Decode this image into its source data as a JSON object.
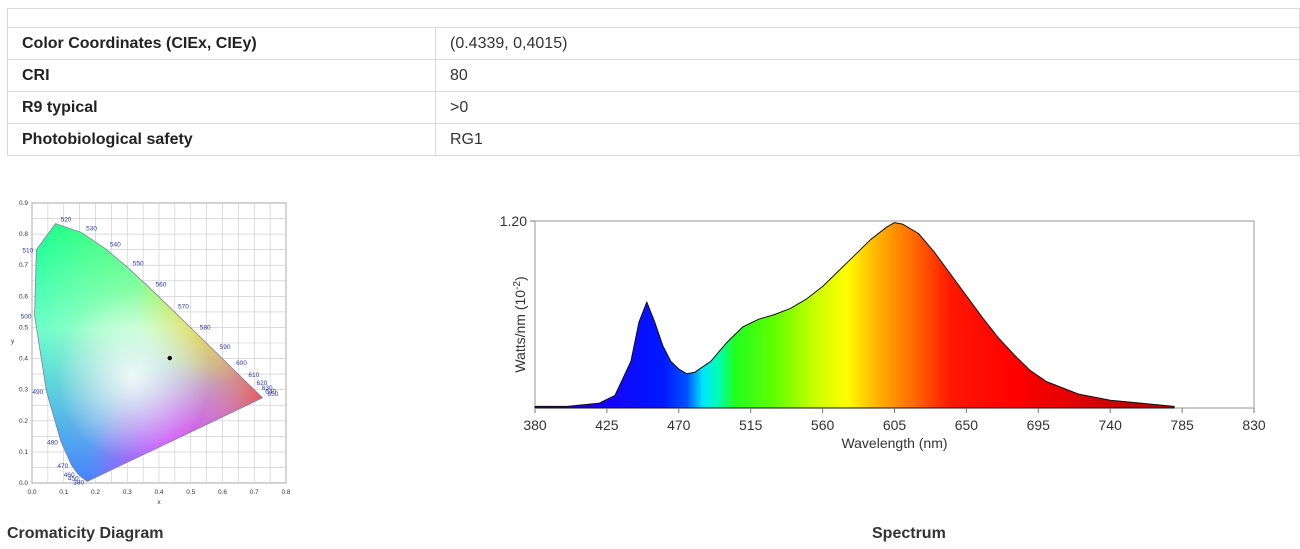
{
  "table": {
    "rows": [
      {
        "label": "Color Coordinates (CIEx, CIEy)",
        "value": "(0.4339, 0,4015)"
      },
      {
        "label": "CRI",
        "value": "80"
      },
      {
        "label": "R9 typical",
        "value": ">0"
      },
      {
        "label": "Photobiological safety",
        "value": "RG1"
      }
    ]
  },
  "captions": {
    "cie": "Cromaticity Diagram",
    "spectrum": "Spectrum"
  },
  "chart_data": [
    {
      "type": "scatter",
      "title": "",
      "xlabel": "x",
      "ylabel": "y",
      "xlim": [
        0,
        0.8
      ],
      "ylim": [
        0,
        0.9
      ],
      "x_ticks": [
        "0.0",
        "0.1",
        "0.2",
        "0.3",
        "0.4",
        "0.5",
        "0.6",
        "0.7",
        "0.8"
      ],
      "y_ticks": [
        "0.0",
        "0.1",
        "0.2",
        "0.3",
        "0.4",
        "0.5",
        "0.6",
        "0.7",
        "0.8",
        "0.9"
      ],
      "grid": true,
      "point": {
        "x": 0.4339,
        "y": 0.4015
      },
      "wavelength_labels": [
        {
          "label": "520",
          "x": 0.0743,
          "y": 0.8338
        },
        {
          "label": "530",
          "x": 0.1547,
          "y": 0.8059
        },
        {
          "label": "540",
          "x": 0.2296,
          "y": 0.7543
        },
        {
          "label": "550",
          "x": 0.3016,
          "y": 0.6923
        },
        {
          "label": "560",
          "x": 0.3731,
          "y": 0.6245
        },
        {
          "label": "570",
          "x": 0.4441,
          "y": 0.5547
        },
        {
          "label": "580",
          "x": 0.5125,
          "y": 0.4866
        },
        {
          "label": "590",
          "x": 0.5752,
          "y": 0.4242
        },
        {
          "label": "600",
          "x": 0.627,
          "y": 0.3725
        },
        {
          "label": "610",
          "x": 0.6658,
          "y": 0.334
        },
        {
          "label": "620",
          "x": 0.6915,
          "y": 0.3083
        },
        {
          "label": "630",
          "x": 0.7079,
          "y": 0.292
        },
        {
          "label": "640",
          "x": 0.719,
          "y": 0.2809
        },
        {
          "label": "650",
          "x": 0.726,
          "y": 0.274
        },
        {
          "label": "510",
          "x": 0.0139,
          "y": 0.7502
        },
        {
          "label": "500",
          "x": 0.0082,
          "y": 0.5384
        },
        {
          "label": "490",
          "x": 0.0454,
          "y": 0.295
        },
        {
          "label": "480",
          "x": 0.0913,
          "y": 0.1327
        },
        {
          "label": "470",
          "x": 0.1241,
          "y": 0.0578
        },
        {
          "label": "460",
          "x": 0.144,
          "y": 0.0297
        },
        {
          "label": "450",
          "x": 0.1566,
          "y": 0.0177
        },
        {
          "label": "380",
          "x": 0.1741,
          "y": 0.005
        }
      ]
    },
    {
      "type": "area",
      "title": "",
      "xlabel": "Wavelength (nm)",
      "ylabel": "Watts/nm (10",
      "ylabel_sup": "-2",
      "ylabel_close": ")",
      "xlim": [
        380,
        830
      ],
      "ylim": [
        0,
        1.2
      ],
      "x_ticks": [
        "380",
        "425",
        "470",
        "515",
        "560",
        "605",
        "650",
        "695",
        "740",
        "785",
        "830"
      ],
      "y_tick": "1.20",
      "x": [
        380,
        400,
        420,
        430,
        440,
        445,
        450,
        455,
        460,
        465,
        470,
        475,
        480,
        490,
        500,
        510,
        520,
        530,
        540,
        550,
        560,
        570,
        580,
        590,
        600,
        605,
        610,
        620,
        630,
        640,
        650,
        660,
        670,
        680,
        690,
        700,
        720,
        740,
        760,
        780
      ],
      "y": [
        0.01,
        0.01,
        0.03,
        0.08,
        0.3,
        0.55,
        0.68,
        0.55,
        0.4,
        0.3,
        0.25,
        0.22,
        0.23,
        0.3,
        0.42,
        0.52,
        0.57,
        0.6,
        0.64,
        0.7,
        0.78,
        0.88,
        0.98,
        1.08,
        1.16,
        1.19,
        1.18,
        1.12,
        1.0,
        0.86,
        0.72,
        0.58,
        0.45,
        0.34,
        0.24,
        0.17,
        0.09,
        0.05,
        0.03,
        0.01
      ]
    }
  ]
}
